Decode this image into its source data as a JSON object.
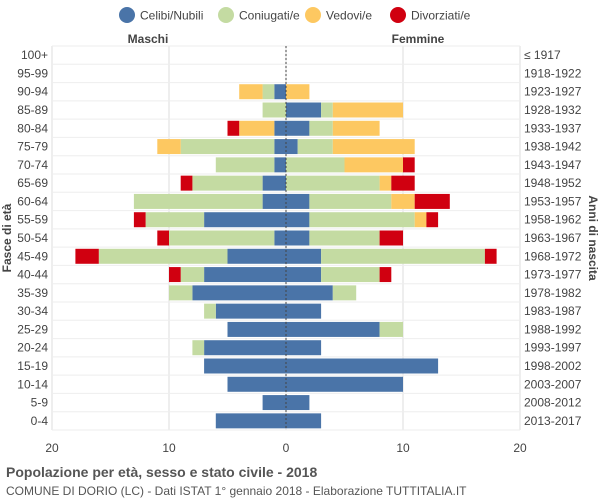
{
  "chart_data": {
    "type": "bar",
    "orientation": "horizontal-butterfly",
    "title": "Popolazione per età, sesso e stato civile - 2018",
    "subtitle": "COMUNE DI DORIO (LC) - Dati ISTAT 1° gennaio 2018 - Elaborazione TUTTITALIA.IT",
    "left_label": "Maschi",
    "right_label": "Femmine",
    "ylabel_left": "Fasce di età",
    "ylabel_right": "Anni di nascita",
    "xlim": [
      -20,
      20
    ],
    "x_ticks": [
      -20,
      -10,
      0,
      10,
      20
    ],
    "x_tick_labels": [
      "20",
      "10",
      "0",
      "10",
      "20"
    ],
    "legend_position": "top",
    "age_groups": [
      "100+",
      "95-99",
      "90-94",
      "85-89",
      "80-84",
      "75-79",
      "70-74",
      "65-69",
      "60-64",
      "55-59",
      "50-54",
      "45-49",
      "40-44",
      "35-39",
      "30-34",
      "25-29",
      "20-24",
      "15-19",
      "10-14",
      "5-9",
      "0-4"
    ],
    "birth_years": [
      "≤ 1917",
      "1918-1922",
      "1923-1927",
      "1928-1932",
      "1933-1937",
      "1938-1942",
      "1943-1947",
      "1948-1952",
      "1953-1957",
      "1958-1962",
      "1963-1967",
      "1968-1972",
      "1973-1977",
      "1978-1982",
      "1983-1987",
      "1988-1992",
      "1993-1997",
      "1998-2002",
      "2003-2007",
      "2008-2012",
      "2013-2017"
    ],
    "series": [
      {
        "name": "Celibi/Nubili",
        "color": "#4a74a8",
        "male": [
          0,
          0,
          1,
          0,
          1,
          1,
          1,
          2,
          2,
          7,
          1,
          5,
          7,
          8,
          6,
          5,
          7,
          7,
          5,
          2,
          6
        ],
        "female": [
          0,
          0,
          0,
          3,
          2,
          1,
          0,
          0,
          2,
          2,
          2,
          3,
          3,
          4,
          3,
          8,
          3,
          13,
          10,
          2,
          3
        ]
      },
      {
        "name": "Coniugati/e",
        "color": "#c4dba2",
        "male": [
          0,
          0,
          1,
          2,
          0,
          8,
          5,
          6,
          11,
          5,
          9,
          11,
          2,
          2,
          1,
          0,
          1,
          0,
          0,
          0,
          0
        ],
        "female": [
          0,
          0,
          0,
          1,
          2,
          3,
          5,
          8,
          7,
          9,
          6,
          14,
          5,
          2,
          0,
          2,
          0,
          0,
          0,
          0,
          0
        ]
      },
      {
        "name": "Vedovi/e",
        "color": "#fdc861",
        "male": [
          0,
          0,
          2,
          0,
          3,
          2,
          0,
          0,
          0,
          0,
          0,
          0,
          0,
          0,
          0,
          0,
          0,
          0,
          0,
          0,
          0
        ],
        "female": [
          0,
          0,
          2,
          6,
          4,
          7,
          5,
          1,
          2,
          1,
          0,
          0,
          0,
          0,
          0,
          0,
          0,
          0,
          0,
          0,
          0
        ]
      },
      {
        "name": "Divorziati/e",
        "color": "#d00010",
        "male": [
          0,
          0,
          0,
          0,
          1,
          0,
          0,
          1,
          0,
          1,
          1,
          2,
          1,
          0,
          0,
          0,
          0,
          0,
          0,
          0,
          0
        ],
        "female": [
          0,
          0,
          0,
          0,
          0,
          0,
          1,
          2,
          3,
          1,
          2,
          1,
          1,
          0,
          0,
          0,
          0,
          0,
          0,
          0,
          0
        ]
      }
    ]
  }
}
